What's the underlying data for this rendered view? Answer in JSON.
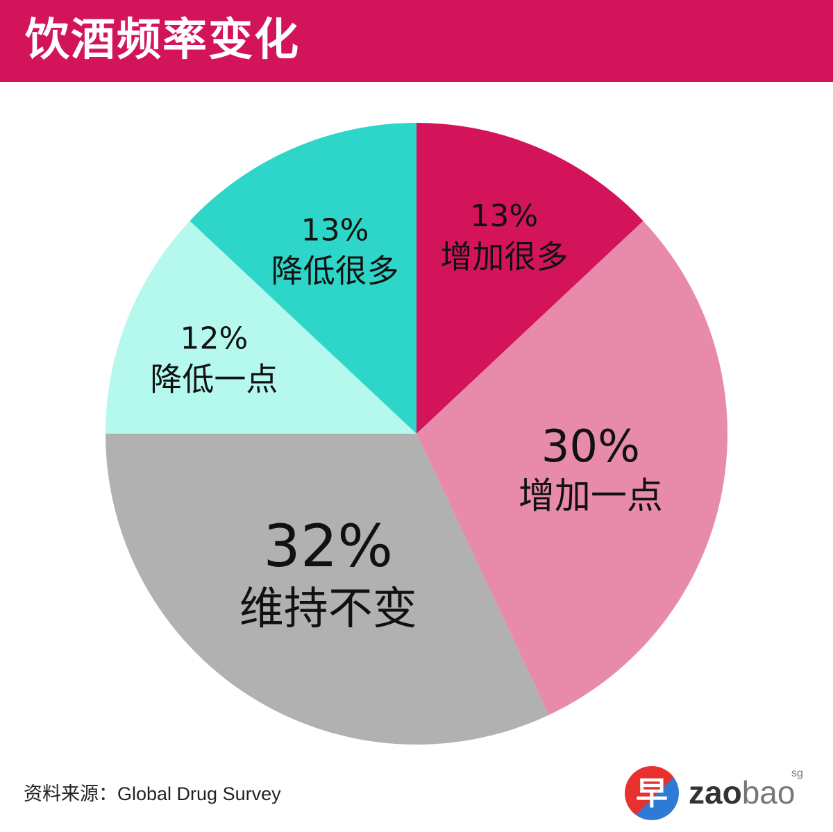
{
  "header": {
    "title": "饮酒频率变化"
  },
  "chart_data": {
    "type": "pie",
    "start_angle": "12 o'clock",
    "direction": "clockwise",
    "slices": [
      {
        "label": "增加很多",
        "value": 13,
        "value_label": "13%",
        "color": "#d3145a"
      },
      {
        "label": "增加一点",
        "value": 30,
        "value_label": "30%",
        "color": "#e88aaa"
      },
      {
        "label": "维持不变",
        "value": 32,
        "value_label": "32%",
        "color": "#b1b1b1"
      },
      {
        "label": "降低一点",
        "value": 12,
        "value_label": "12%",
        "color": "#b4f8ee"
      },
      {
        "label": "降低很多",
        "value": 13,
        "value_label": "13%",
        "color": "#2dd6c9"
      }
    ]
  },
  "source": "资料来源：Global Drug Survey",
  "logo": {
    "char": "早",
    "zao": "zao",
    "bao": "bao",
    "sg": "sg"
  }
}
